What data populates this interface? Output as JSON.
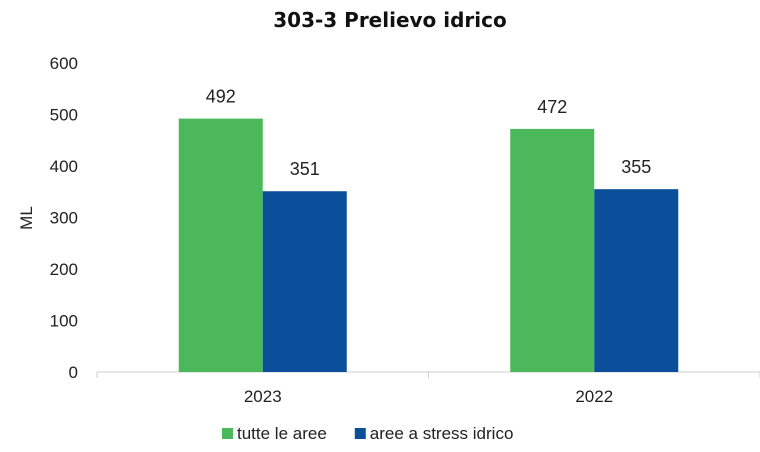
{
  "chart_data": {
    "type": "bar",
    "title": "303-3 Prelievo idrico",
    "xlabel": "",
    "ylabel": "ML",
    "categories": [
      "2023",
      "2022"
    ],
    "ylim": [
      0,
      600
    ],
    "yticks": [
      0,
      100,
      200,
      300,
      400,
      500,
      600
    ],
    "yticklabels": [
      "0",
      "100",
      "200",
      "300",
      "400",
      "500",
      "600"
    ],
    "grid": false,
    "legend_position": "bottom",
    "series": [
      {
        "name": "tutte le aree",
        "values": [
          492,
          472
        ],
        "labels": [
          "492",
          "472"
        ],
        "color": "#4cb85c"
      },
      {
        "name": "aree a stress idrico",
        "values": [
          351,
          355
        ],
        "labels": [
          "351",
          "355"
        ],
        "color": "#0b4f9a"
      }
    ]
  }
}
